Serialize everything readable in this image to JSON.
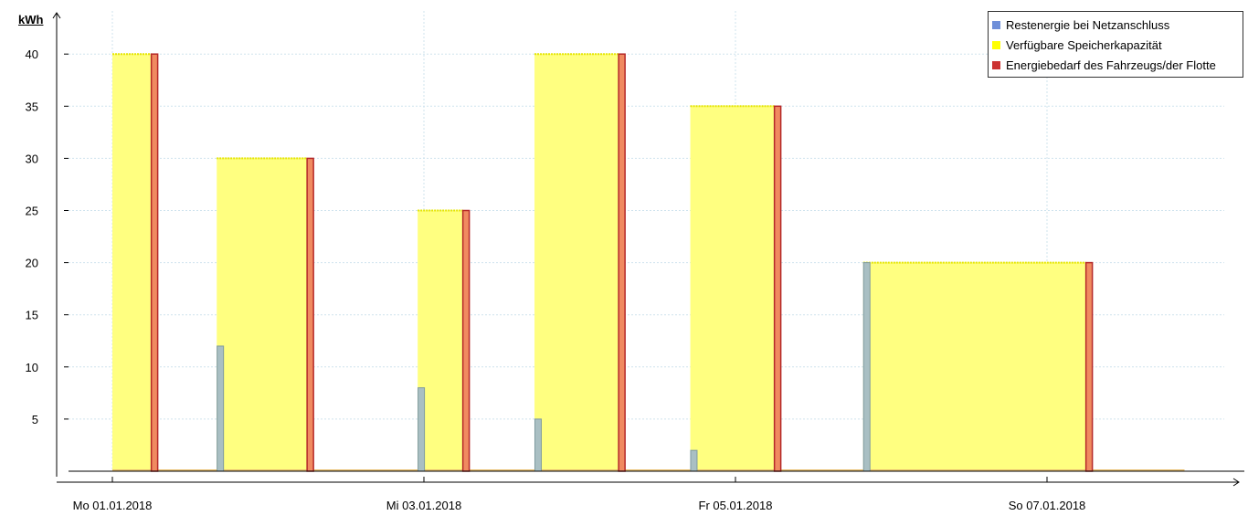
{
  "chart_data": {
    "type": "bar",
    "ylabel": "kWh",
    "ylim": [
      0,
      42
    ],
    "yticks": [
      5,
      10,
      15,
      20,
      25,
      30,
      35,
      40
    ],
    "xlim_days": [
      -0.1,
      7.0
    ],
    "xticks": [
      {
        "day": 0,
        "label": "Mo 01.01.2018"
      },
      {
        "day": 2,
        "label": "Mi 03.01.2018"
      },
      {
        "day": 4,
        "label": "Fr 05.01.2018"
      },
      {
        "day": 6,
        "label": "So 07.01.2018"
      }
    ],
    "grid": true,
    "legend_position": "top-right",
    "series": [
      {
        "name": "Restenergie bei Netzanschluss",
        "color": "#6f8fd9",
        "points": [
          {
            "day": 0.69,
            "value": 12
          },
          {
            "day": 1.98,
            "value": 8
          },
          {
            "day": 2.73,
            "value": 5
          },
          {
            "day": 3.73,
            "value": 2
          },
          {
            "day": 4.84,
            "value": 20
          }
        ]
      },
      {
        "name": "Verfügbare Speicherkapazität",
        "color": "#ffff00",
        "ranges": [
          {
            "start": 0.0,
            "end": 0.25,
            "value": 40
          },
          {
            "start": 0.67,
            "end": 1.25,
            "value": 30
          },
          {
            "start": 1.96,
            "end": 2.25,
            "value": 25
          },
          {
            "start": 2.71,
            "end": 3.25,
            "value": 40
          },
          {
            "start": 3.71,
            "end": 4.25,
            "value": 35
          },
          {
            "start": 4.82,
            "end": 6.25,
            "value": 20
          }
        ]
      },
      {
        "name": "Energiebedarf des Fahrzeugs/der Flotte",
        "color": "#cc3333",
        "points": [
          {
            "day": 0.25,
            "value": 40
          },
          {
            "day": 1.25,
            "value": 30
          },
          {
            "day": 2.25,
            "value": 25
          },
          {
            "day": 3.25,
            "value": 40
          },
          {
            "day": 4.25,
            "value": 35
          },
          {
            "day": 6.25,
            "value": 20
          }
        ]
      }
    ]
  }
}
